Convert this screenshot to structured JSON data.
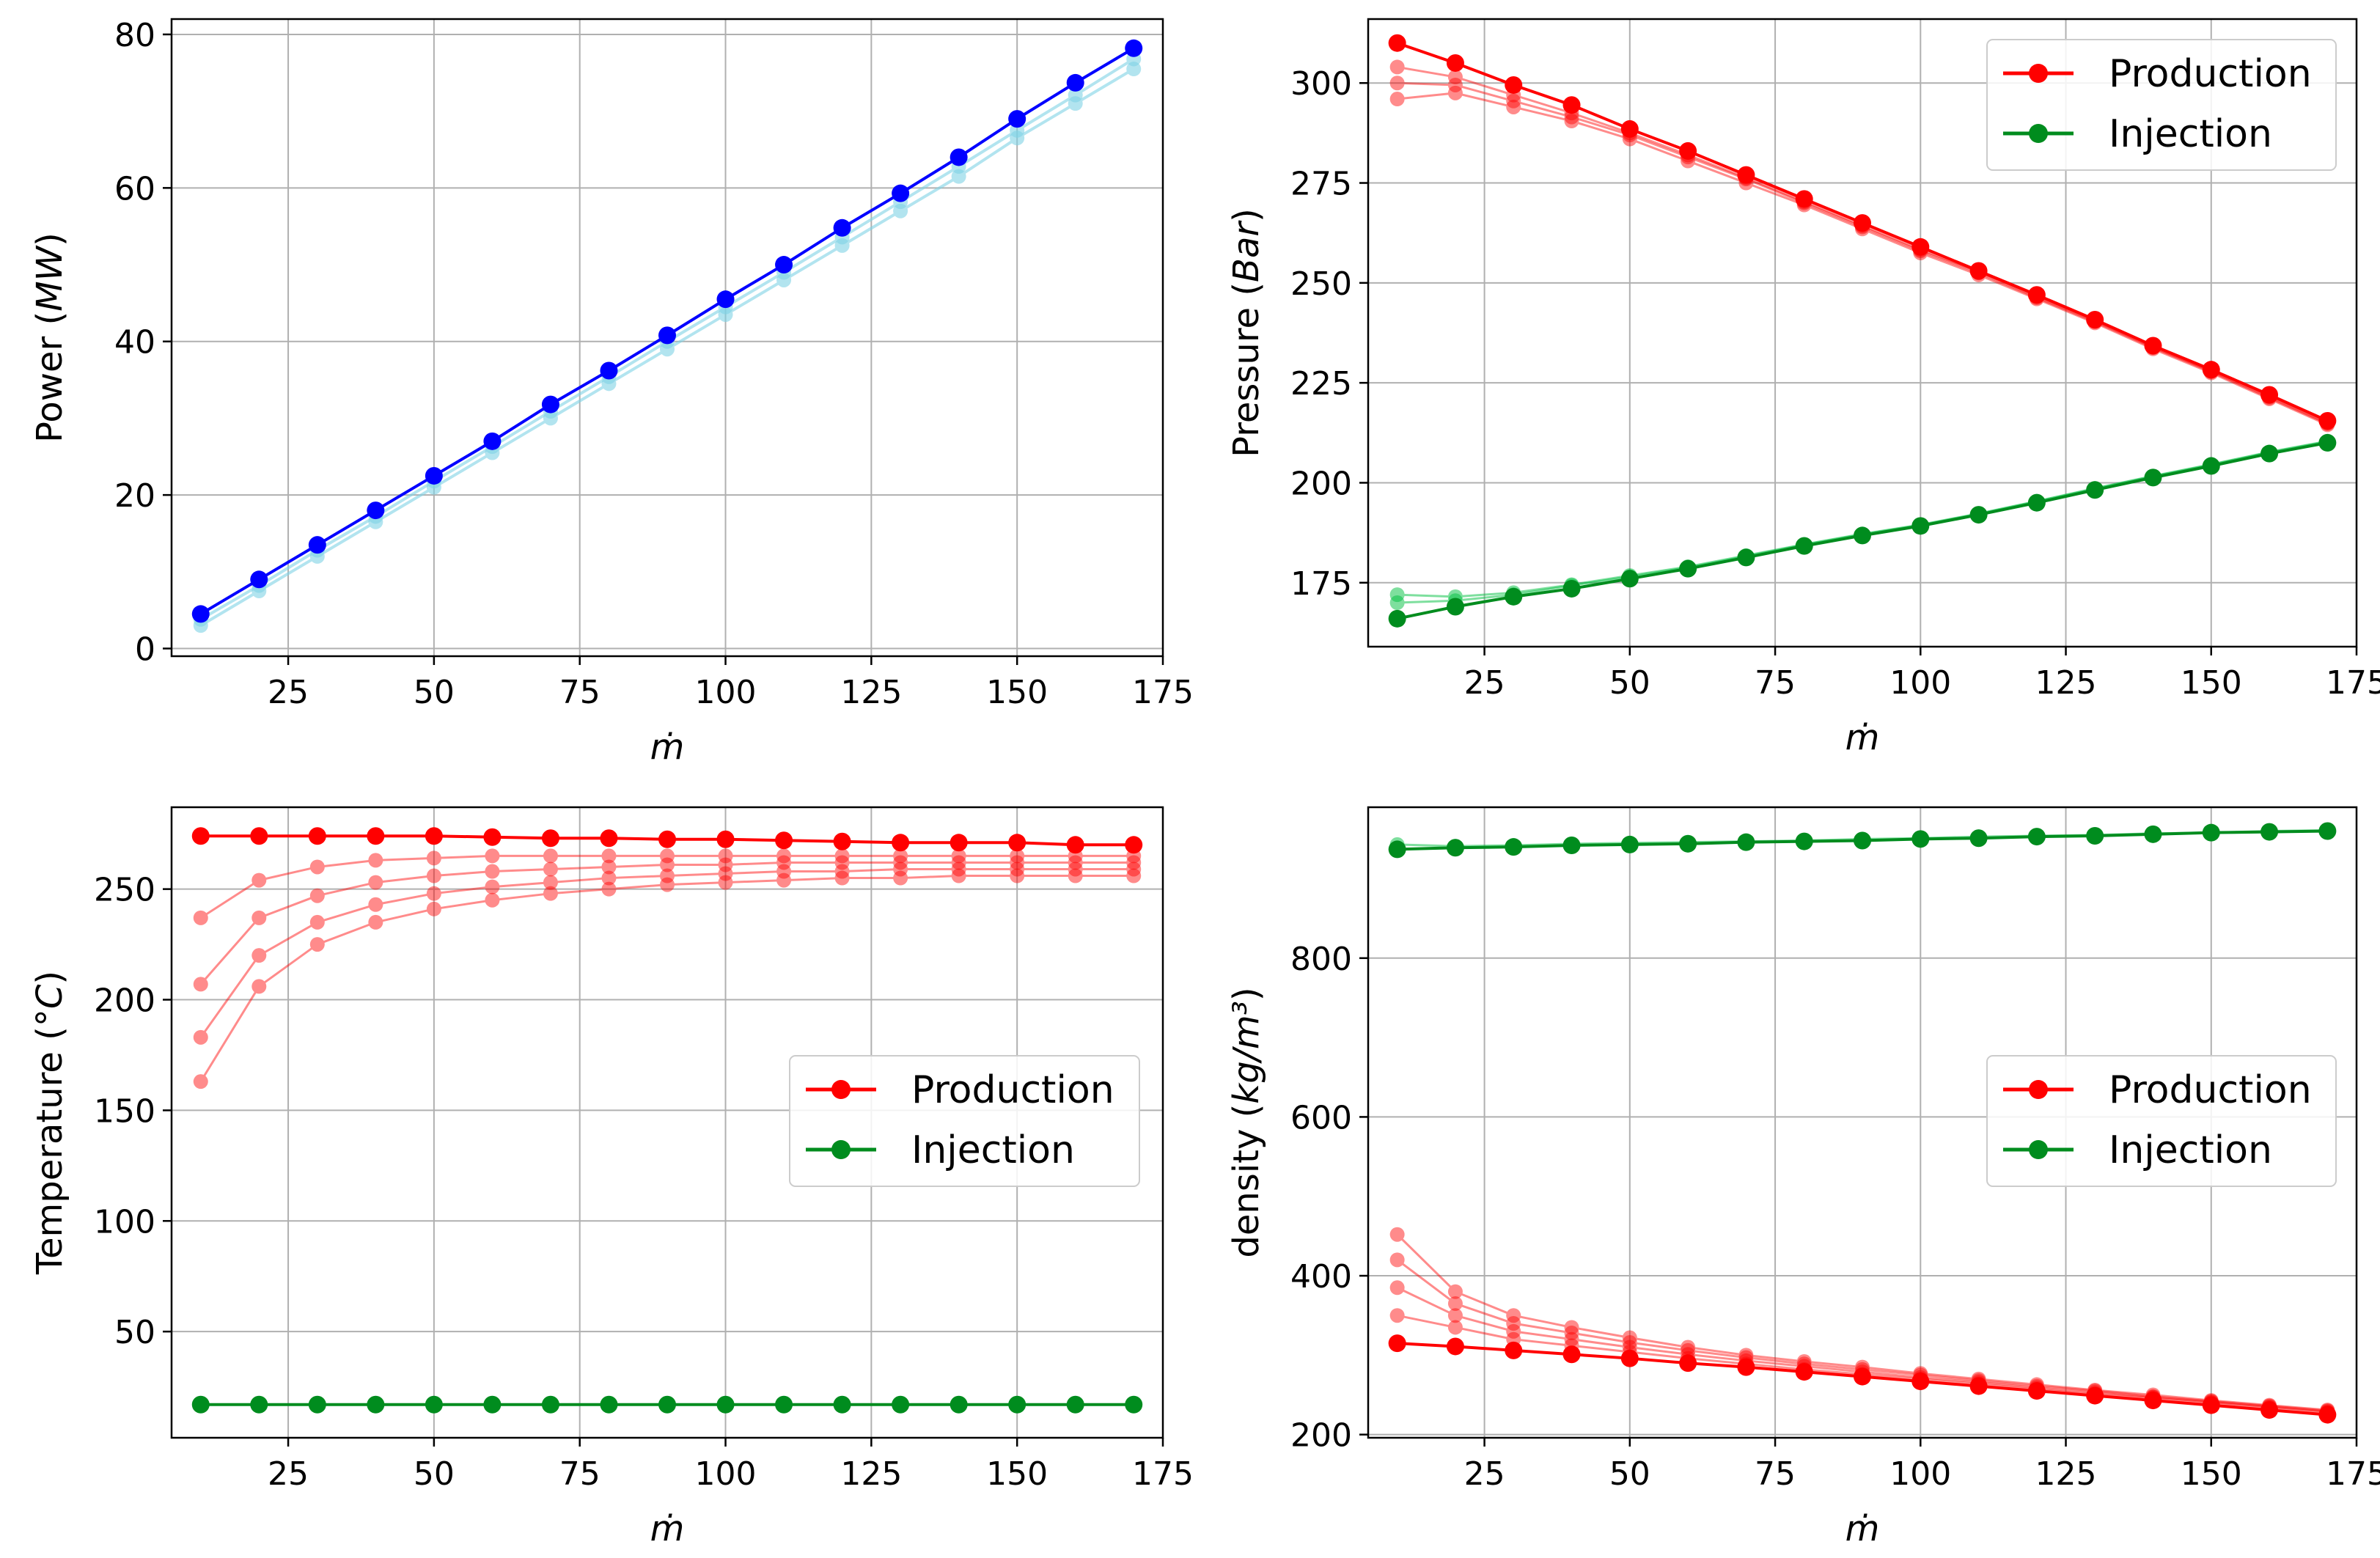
{
  "chart_data": [
    {
      "id": "power",
      "type": "line",
      "title": "",
      "xlabel": "ṁ",
      "ylabel": "Power (MW)",
      "ylabel_text": "Power (",
      "ylabel_unit": "MW",
      "ylabel_close": ")",
      "xlim": [
        5,
        175
      ],
      "ylim": [
        -1,
        82
      ],
      "xticks": [
        25,
        50,
        75,
        100,
        125,
        150,
        175
      ],
      "yticks": [
        0,
        20,
        40,
        60,
        80
      ],
      "grid": true,
      "legend": null,
      "x": [
        10,
        20,
        30,
        40,
        50,
        60,
        70,
        80,
        90,
        100,
        110,
        120,
        130,
        140,
        150,
        160,
        170
      ],
      "series": [
        {
          "name": "Power (faint runs)",
          "group": "power",
          "color": "#7fd3e6",
          "alpha": 0.6,
          "linewidth": 4,
          "markersize": 10,
          "values": [
            3,
            7.5,
            12,
            16.5,
            21,
            25.5,
            30,
            34.5,
            39,
            43.5,
            48,
            52.5,
            57,
            61.5,
            66.5,
            71,
            75.5
          ]
        },
        {
          "name": "Power (faint runs)",
          "group": "power",
          "color": "#7fd3e6",
          "alpha": 0.6,
          "linewidth": 4,
          "markersize": 10,
          "values": [
            3.8,
            8.2,
            12.8,
            17.2,
            21.8,
            26.3,
            30.9,
            35.4,
            40,
            44.5,
            49,
            53.6,
            58.2,
            62.8,
            67.5,
            72.1,
            76.8
          ]
        },
        {
          "name": "Power",
          "group": "power",
          "color": "#0000ff",
          "alpha": 1,
          "linewidth": 4,
          "markersize": 12,
          "values": [
            4.5,
            9,
            13.5,
            18,
            22.5,
            27,
            31.8,
            36.2,
            40.8,
            45.5,
            50,
            54.8,
            59.3,
            64,
            69,
            73.7,
            78.2
          ]
        }
      ]
    },
    {
      "id": "pressure",
      "type": "line",
      "title": "",
      "xlabel": "ṁ",
      "ylabel": "Pressure (Bar)",
      "ylabel_text": "Pressure (",
      "ylabel_unit": "Bar",
      "ylabel_close": ")",
      "xlim": [
        5,
        175
      ],
      "ylim": [
        159,
        316
      ],
      "xticks": [
        25,
        50,
        75,
        100,
        125,
        150,
        175
      ],
      "yticks": [
        175,
        200,
        225,
        250,
        275,
        300
      ],
      "grid": true,
      "legend": {
        "placement": "top-right",
        "entries": [
          {
            "label": "Production",
            "color": "#ff0000"
          },
          {
            "label": "Injection",
            "color": "#008c1e"
          }
        ]
      },
      "x": [
        10,
        20,
        30,
        40,
        50,
        60,
        70,
        80,
        90,
        100,
        110,
        120,
        130,
        140,
        150,
        160,
        170
      ],
      "series": [
        {
          "name": "Production (faint)",
          "group": "production",
          "color": "#ff0000",
          "alpha": 0.45,
          "linewidth": 3,
          "markersize": 10,
          "values": [
            296,
            297.5,
            294,
            290.5,
            286,
            280.5,
            275,
            269.5,
            263.5,
            257.5,
            252,
            246,
            240,
            233.5,
            227.5,
            221,
            214.5
          ]
        },
        {
          "name": "Production (faint)",
          "group": "production",
          "color": "#ff0000",
          "alpha": 0.45,
          "linewidth": 3,
          "markersize": 10,
          "values": [
            300,
            299.5,
            295.5,
            291.5,
            287,
            281.5,
            276,
            270,
            264,
            258,
            252.5,
            246.3,
            240.3,
            233.8,
            227.8,
            221.3,
            214.8
          ]
        },
        {
          "name": "Production (faint)",
          "group": "production",
          "color": "#ff0000",
          "alpha": 0.45,
          "linewidth": 3,
          "markersize": 10,
          "values": [
            304,
            301.5,
            297,
            292.5,
            287.5,
            282,
            276.3,
            270.3,
            264.3,
            258.3,
            252.8,
            246.6,
            240.6,
            234,
            228,
            221.6,
            215
          ]
        },
        {
          "name": "Production",
          "group": "production",
          "color": "#ff0000",
          "alpha": 1,
          "linewidth": 4,
          "markersize": 12,
          "values": [
            310,
            305,
            299.5,
            294.5,
            288.5,
            283,
            277,
            271,
            265,
            259,
            253,
            247,
            240.8,
            234.3,
            228.3,
            222,
            215.5
          ]
        },
        {
          "name": "Injection (faint)",
          "group": "injection",
          "color": "#00c040",
          "alpha": 0.5,
          "linewidth": 3,
          "markersize": 10,
          "values": [
            172,
            171.5,
            172.5,
            174.5,
            176.8,
            179,
            181.8,
            184.6,
            187.2,
            189.5,
            192.3,
            195.4,
            198.6,
            201.7,
            204.6,
            207.7,
            210.4
          ]
        },
        {
          "name": "Injection (faint)",
          "group": "injection",
          "color": "#00c040",
          "alpha": 0.5,
          "linewidth": 3,
          "markersize": 10,
          "values": [
            170,
            170.5,
            172,
            174.3,
            176.5,
            178.8,
            181.6,
            184.5,
            187.1,
            189.4,
            192.2,
            195.3,
            198.5,
            201.6,
            204.5,
            207.6,
            210.3
          ]
        },
        {
          "name": "Injection",
          "group": "injection",
          "color": "#008c1e",
          "alpha": 1,
          "linewidth": 4,
          "markersize": 12,
          "values": [
            166,
            169,
            171.5,
            173.5,
            176,
            178.5,
            181.3,
            184.2,
            186.8,
            189.2,
            192,
            195,
            198.2,
            201.3,
            204.2,
            207.3,
            210
          ]
        }
      ]
    },
    {
      "id": "temperature",
      "type": "line",
      "title": "",
      "xlabel": "ṁ",
      "ylabel": "Temperature (°C)",
      "ylabel_text": "Temperature (",
      "ylabel_unit": "°C",
      "ylabel_close": ")",
      "xlim": [
        5,
        175
      ],
      "ylim": [
        2,
        287
      ],
      "xticks": [
        25,
        50,
        75,
        100,
        125,
        150,
        175
      ],
      "yticks": [
        50,
        100,
        150,
        200,
        250
      ],
      "grid": true,
      "legend": {
        "placement": "center-right",
        "entries": [
          {
            "label": "Production",
            "color": "#ff0000"
          },
          {
            "label": "Injection",
            "color": "#008c1e"
          }
        ]
      },
      "x": [
        10,
        20,
        30,
        40,
        50,
        60,
        70,
        80,
        90,
        100,
        110,
        120,
        130,
        140,
        150,
        160,
        170
      ],
      "series": [
        {
          "name": "Production (faint)",
          "group": "production",
          "color": "#ff0000",
          "alpha": 0.45,
          "linewidth": 3,
          "markersize": 10,
          "values": [
            163,
            206,
            225,
            235,
            241,
            245,
            248,
            250,
            252,
            253,
            254,
            255,
            255,
            256,
            256,
            256,
            256
          ]
        },
        {
          "name": "Production (faint)",
          "group": "production",
          "color": "#ff0000",
          "alpha": 0.45,
          "linewidth": 3,
          "markersize": 10,
          "values": [
            183,
            220,
            235,
            243,
            248,
            251,
            253,
            255,
            256,
            257,
            258,
            258,
            259,
            259,
            259,
            259,
            259
          ]
        },
        {
          "name": "Production (faint)",
          "group": "production",
          "color": "#ff0000",
          "alpha": 0.45,
          "linewidth": 3,
          "markersize": 10,
          "values": [
            207,
            237,
            247,
            253,
            256,
            258,
            259,
            260,
            261,
            261,
            262,
            262,
            262,
            262,
            262,
            262,
            262
          ]
        },
        {
          "name": "Production (faint)",
          "group": "production",
          "color": "#ff0000",
          "alpha": 0.45,
          "linewidth": 3,
          "markersize": 10,
          "values": [
            237,
            254,
            260,
            263,
            264,
            265,
            265,
            265,
            265,
            265,
            265,
            265,
            265,
            265,
            265,
            265,
            265
          ]
        },
        {
          "name": "Production",
          "group": "production",
          "color": "#ff0000",
          "alpha": 1,
          "linewidth": 4,
          "markersize": 12,
          "values": [
            274,
            274,
            274,
            274,
            274,
            273.5,
            273,
            273,
            272.5,
            272.5,
            272,
            271.5,
            271,
            271,
            271,
            270,
            270
          ]
        },
        {
          "name": "Injection",
          "group": "injection",
          "color": "#008c1e",
          "alpha": 1,
          "linewidth": 4,
          "markersize": 12,
          "values": [
            17,
            17,
            17,
            17,
            17,
            17,
            17,
            17,
            17,
            17,
            17,
            17,
            17,
            17,
            17,
            17,
            17
          ]
        }
      ]
    },
    {
      "id": "density",
      "type": "line",
      "title": "",
      "xlabel": "ṁ",
      "ylabel": "density (kg/m³)",
      "ylabel_text": "density (",
      "ylabel_unit": "kg/m³",
      "ylabel_close": ")",
      "xlim": [
        5,
        175
      ],
      "ylim": [
        196,
        990
      ],
      "xticks": [
        25,
        50,
        75,
        100,
        125,
        150,
        175
      ],
      "yticks": [
        200,
        400,
        600,
        800
      ],
      "grid": true,
      "legend": {
        "placement": "center-right",
        "entries": [
          {
            "label": "Production",
            "color": "#ff0000"
          },
          {
            "label": "Injection",
            "color": "#008c1e"
          }
        ]
      },
      "x": [
        10,
        20,
        30,
        40,
        50,
        60,
        70,
        80,
        90,
        100,
        110,
        120,
        130,
        140,
        150,
        160,
        170
      ],
      "series": [
        {
          "name": "Production (faint)",
          "group": "production",
          "color": "#ff0000",
          "alpha": 0.45,
          "linewidth": 3,
          "markersize": 10,
          "values": [
            452,
            380,
            350,
            335,
            322,
            310,
            300,
            292,
            285,
            277,
            270,
            263,
            256,
            250,
            243,
            237,
            231
          ]
        },
        {
          "name": "Production (faint)",
          "group": "production",
          "color": "#ff0000",
          "alpha": 0.45,
          "linewidth": 3,
          "markersize": 10,
          "values": [
            420,
            365,
            340,
            328,
            316,
            306,
            297,
            289,
            282,
            275,
            268,
            261,
            255,
            248,
            242,
            236,
            230
          ]
        },
        {
          "name": "Production (faint)",
          "group": "production",
          "color": "#ff0000",
          "alpha": 0.45,
          "linewidth": 3,
          "markersize": 10,
          "values": [
            385,
            350,
            330,
            320,
            310,
            301,
            293,
            286,
            279,
            272,
            266,
            259,
            253,
            247,
            241,
            235,
            229
          ]
        },
        {
          "name": "Production (faint)",
          "group": "production",
          "color": "#ff0000",
          "alpha": 0.45,
          "linewidth": 3,
          "markersize": 10,
          "values": [
            350,
            335,
            320,
            312,
            304,
            296,
            289,
            282,
            276,
            270,
            264,
            257,
            251,
            246,
            240,
            234,
            228
          ]
        },
        {
          "name": "Production",
          "group": "production",
          "color": "#ff0000",
          "alpha": 1,
          "linewidth": 4,
          "markersize": 12,
          "values": [
            315,
            311,
            306,
            301,
            296,
            290,
            285,
            279,
            273,
            267,
            261,
            255,
            249,
            243,
            237,
            231,
            225
          ]
        },
        {
          "name": "Injection (faint)",
          "group": "injection",
          "color": "#00c040",
          "alpha": 0.5,
          "linewidth": 3,
          "markersize": 10,
          "values": [
            943,
            941,
            942,
            944,
            945,
            946,
            947,
            948,
            950,
            951,
            953,
            954,
            955,
            957,
            958,
            960,
            961
          ]
        },
        {
          "name": "Injection",
          "group": "injection",
          "color": "#008c1e",
          "alpha": 1,
          "linewidth": 4,
          "markersize": 12,
          "values": [
            937,
            939,
            940,
            942,
            943,
            944,
            946,
            947,
            948,
            950,
            951,
            953,
            954,
            956,
            958,
            959,
            960
          ]
        }
      ]
    }
  ]
}
